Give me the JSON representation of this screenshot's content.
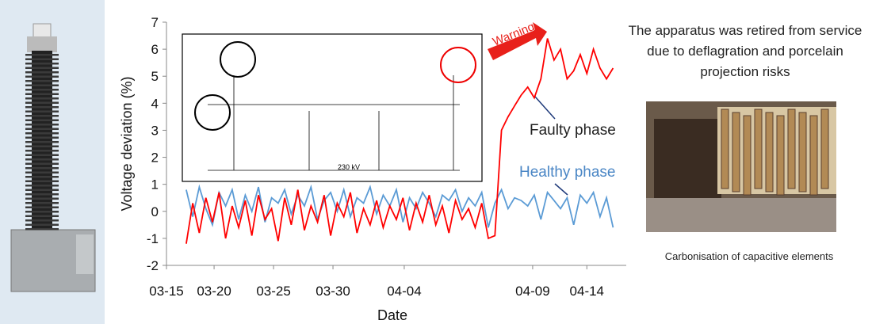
{
  "chart_data": {
    "type": "line",
    "y_label": "Voltage deviation (%)",
    "x_label": "Date",
    "annotations": {
      "warning": "Warning",
      "faulty": "Faulty phase",
      "healthy": "Healthy phase"
    },
    "xlim": [
      0,
      140
    ],
    "xticks": [
      {
        "value": 0,
        "label": "03-15"
      },
      {
        "value": 14.5,
        "label": "03-20"
      },
      {
        "value": 32.6,
        "label": "03-25"
      },
      {
        "value": 50.7,
        "label": "03-30"
      },
      {
        "value": 72.4,
        "label": "04-04"
      },
      {
        "value": 111.5,
        "label": "04-09"
      },
      {
        "value": 128,
        "label": "04-14"
      }
    ],
    "ylim": [
      -2,
      7
    ],
    "yticks": [
      -2,
      -1,
      0,
      1,
      2,
      3,
      4,
      5,
      6,
      7
    ],
    "x": [
      6,
      8,
      10,
      12,
      14,
      16,
      18,
      20,
      22,
      24,
      26,
      28,
      30,
      32,
      34,
      36,
      38,
      40,
      42,
      44,
      46,
      48,
      50,
      52,
      54,
      56,
      58,
      60,
      62,
      64,
      66,
      68,
      70,
      72,
      74,
      76,
      78,
      80,
      82,
      84,
      86,
      88,
      90,
      92,
      94,
      96,
      98,
      100,
      102,
      104,
      106,
      108,
      110,
      112,
      114,
      116,
      118,
      120,
      122,
      124,
      126,
      128,
      130,
      132,
      134,
      136
    ],
    "series": [
      {
        "name": "Healthy phase",
        "color": "#5b9bd5",
        "values": [
          0.8,
          -0.2,
          0.9,
          0.1,
          -0.5,
          0.7,
          0.2,
          0.8,
          -0.3,
          0.6,
          0.0,
          0.9,
          -0.4,
          0.5,
          0.3,
          0.8,
          -0.1,
          0.6,
          0.2,
          0.9,
          -0.3,
          0.4,
          0.7,
          0.0,
          0.8,
          -0.2,
          0.5,
          0.3,
          0.9,
          -0.1,
          0.6,
          0.2,
          0.8,
          -0.4,
          0.5,
          0.1,
          0.7,
          0.3,
          -0.2,
          0.6,
          0.4,
          0.8,
          0.0,
          0.5,
          0.2,
          0.7,
          -0.6,
          0.3,
          0.8,
          0.1,
          0.5,
          0.4,
          0.2,
          0.6,
          -0.3,
          0.7,
          0.4,
          0.1,
          0.5,
          -0.5,
          0.6,
          0.3,
          0.7,
          -0.2,
          0.5,
          -0.6
        ]
      },
      {
        "name": "Faulty phase",
        "color": "#ff0000",
        "values": [
          -1.2,
          0.3,
          -0.8,
          0.5,
          -0.4,
          0.7,
          -1.0,
          0.2,
          -0.6,
          0.4,
          -0.9,
          0.6,
          -0.3,
          0.1,
          -1.1,
          0.5,
          -0.5,
          0.8,
          -0.7,
          0.2,
          -0.4,
          0.6,
          -0.9,
          0.3,
          -0.2,
          0.7,
          -0.8,
          0.1,
          -0.5,
          0.4,
          -0.6,
          0.2,
          -0.3,
          0.5,
          -0.7,
          0.3,
          -0.4,
          0.6,
          -0.5,
          0.2,
          -0.8,
          0.4,
          -0.3,
          0.1,
          -0.6,
          0.3,
          -1.0,
          -0.9,
          3.0,
          3.5,
          3.9,
          4.3,
          4.6,
          4.2,
          4.9,
          6.4,
          5.6,
          6.0,
          4.9,
          5.2,
          5.8,
          5.1,
          6.0,
          5.3,
          4.9,
          5.3
        ]
      }
    ]
  },
  "inset_label": "230 kV",
  "side_text": "The apparatus was retired from service due to deflagration and porcelain projection risks",
  "photo_caption": "Carbonisation of capacitive elements"
}
